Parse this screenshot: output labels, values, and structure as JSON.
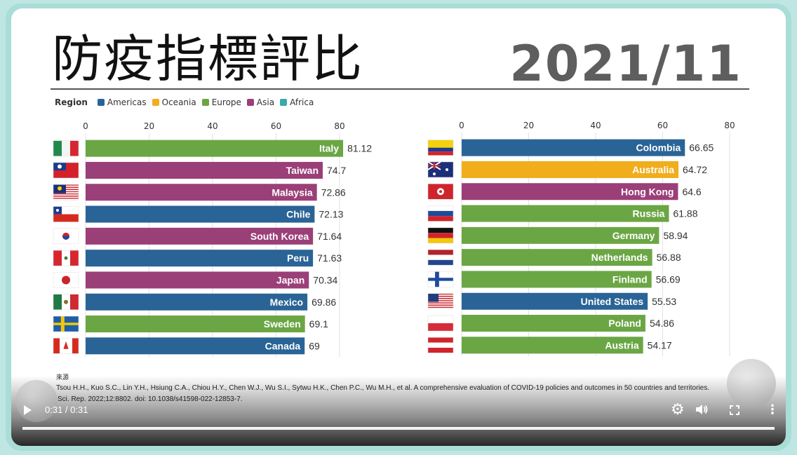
{
  "title": "防疫指標評比",
  "date": "2021/11",
  "legend": {
    "title": "Region",
    "items": [
      {
        "name": "Americas",
        "color": "#2a6496"
      },
      {
        "name": "Oceania",
        "color": "#f0ad1c"
      },
      {
        "name": "Europe",
        "color": "#6ba644"
      },
      {
        "name": "Asia",
        "color": "#9b3f78"
      },
      {
        "name": "Africa",
        "color": "#3aa9a9"
      }
    ]
  },
  "chart_data": [
    {
      "type": "bar",
      "orientation": "horizontal",
      "xlim": [
        0,
        80
      ],
      "ticks": [
        0,
        20,
        40,
        60,
        80
      ],
      "categories": [
        "Italy",
        "Taiwan",
        "Malaysia",
        "Chile",
        "South Korea",
        "Peru",
        "Japan",
        "Mexico",
        "Sweden",
        "Canada"
      ],
      "values": [
        81.12,
        74.7,
        72.86,
        72.13,
        71.64,
        71.63,
        70.34,
        69.86,
        69.1,
        69
      ],
      "value_labels": [
        "81.12",
        "74.7",
        "72.86",
        "72.13",
        "71.64",
        "71.63",
        "70.34",
        "69.86",
        "69.1",
        "69"
      ],
      "regions": [
        "Europe",
        "Asia",
        "Asia",
        "Americas",
        "Asia",
        "Americas",
        "Asia",
        "Americas",
        "Europe",
        "Americas"
      ],
      "flags": [
        "italy-flag-icon",
        "taiwan-flag-icon",
        "malaysia-flag-icon",
        "chile-flag-icon",
        "south-korea-flag-icon",
        "peru-flag-icon",
        "japan-flag-icon",
        "mexico-flag-icon",
        "sweden-flag-icon",
        "canada-flag-icon"
      ]
    },
    {
      "type": "bar",
      "orientation": "horizontal",
      "xlim": [
        0,
        80
      ],
      "ticks": [
        0,
        20,
        40,
        60,
        80
      ],
      "categories": [
        "Colombia",
        "Australia",
        "Hong Kong",
        "Russia",
        "Germany",
        "Netherlands",
        "Finland",
        "United States",
        "Poland",
        "Austria"
      ],
      "values": [
        66.65,
        64.72,
        64.6,
        61.88,
        58.94,
        56.88,
        56.69,
        55.53,
        54.86,
        54.17
      ],
      "value_labels": [
        "66.65",
        "64.72",
        "64.6",
        "61.88",
        "58.94",
        "56.88",
        "56.69",
        "55.53",
        "54.86",
        "54.17"
      ],
      "regions": [
        "Americas",
        "Oceania",
        "Asia",
        "Europe",
        "Europe",
        "Europe",
        "Europe",
        "Americas",
        "Europe",
        "Europe"
      ],
      "flags": [
        "colombia-flag-icon",
        "australia-flag-icon",
        "hong-kong-flag-icon",
        "russia-flag-icon",
        "germany-flag-icon",
        "netherlands-flag-icon",
        "finland-flag-icon",
        "united-states-flag-icon",
        "poland-flag-icon",
        "austria-flag-icon"
      ]
    }
  ],
  "source": {
    "label": "來源",
    "citation_line1": "Tsou H.H., Kuo S.C., Lin Y.H., Hsiung C.A., Chiou H.Y., Chen W.J., Wu S.I., Sytwu H.K., Chen P.C., Wu M.H., et al. A comprehensive evaluation of COVID-19 policies and outcomes in 50 countries and territories.",
    "citation_line2": "Sci. Rep. 2022;12:8802. doi: 10.1038/s41598-022-12853-7."
  },
  "player": {
    "time": "0:31 / 0:31",
    "progress": 1.0,
    "icons": [
      "play-icon",
      "settings-icon",
      "volume-icon",
      "fullscreen-icon",
      "more-icon"
    ]
  }
}
